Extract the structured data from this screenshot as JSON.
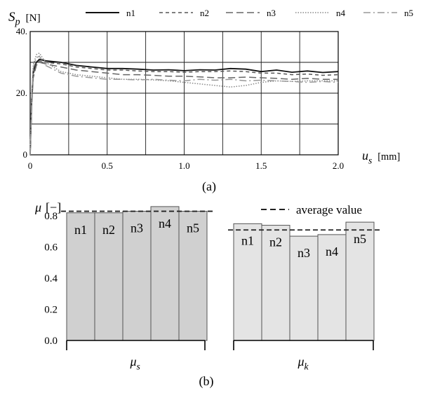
{
  "chart_data": [
    {
      "panel_label": "(a)",
      "type": "line",
      "ylabel": "S_p [N]",
      "ylabel_main": "S",
      "ylabel_sub": "p",
      "ylabel_unit": "[N]",
      "xlabel": "u_s [mm]",
      "xlabel_main": "u",
      "xlabel_sub": "s",
      "xlabel_unit": "[mm]",
      "xlim": [
        0,
        2.0
      ],
      "ylim": [
        0,
        40
      ],
      "xticks": [
        0,
        0.5,
        1.0,
        1.5,
        2.0
      ],
      "xtick_labels": [
        "0",
        "0.5",
        "1.0",
        "1.5",
        "2.0"
      ],
      "yticks": [
        0,
        20,
        40
      ],
      "ytick_labels": [
        "0",
        "20.",
        "40."
      ],
      "grid": true,
      "legend_position": "top",
      "series": [
        {
          "name": "n1",
          "color": "#111111",
          "dash": "solid",
          "x": [
            0,
            0.01,
            0.02,
            0.04,
            0.06,
            0.1,
            0.2,
            0.3,
            0.4,
            0.5,
            0.6,
            0.7,
            0.8,
            0.9,
            1.0,
            1.1,
            1.2,
            1.3,
            1.4,
            1.5,
            1.6,
            1.7,
            1.8,
            1.9,
            2.0
          ],
          "y": [
            0,
            18,
            27,
            30,
            31,
            30.5,
            30,
            29,
            28.5,
            28,
            28,
            27.8,
            27.5,
            27.6,
            27.3,
            27.6,
            27.5,
            28,
            27.8,
            27,
            27.5,
            26.8,
            27.2,
            26.7,
            27
          ]
        },
        {
          "name": "n2",
          "color": "#555555",
          "dash": "short-dash",
          "x": [
            0,
            0.01,
            0.02,
            0.04,
            0.06,
            0.1,
            0.2,
            0.3,
            0.4,
            0.5,
            0.6,
            0.7,
            0.8,
            0.9,
            1.0,
            1.1,
            1.2,
            1.3,
            1.4,
            1.5,
            1.6,
            1.7,
            1.8,
            1.9,
            2.0
          ],
          "y": [
            0,
            17,
            26,
            29.5,
            30.5,
            30,
            29.5,
            28.5,
            28,
            27.5,
            27.5,
            27.2,
            27,
            27,
            26.8,
            27,
            27,
            27.2,
            27,
            26.5,
            26.5,
            26,
            26.2,
            25.8,
            26
          ]
        },
        {
          "name": "n3",
          "color": "#666666",
          "dash": "long-dash",
          "x": [
            0,
            0.01,
            0.02,
            0.04,
            0.06,
            0.1,
            0.2,
            0.3,
            0.4,
            0.5,
            0.6,
            0.7,
            0.8,
            0.9,
            1.0,
            1.1,
            1.2,
            1.3,
            1.4,
            1.5,
            1.6,
            1.7,
            1.8,
            1.9,
            2.0
          ],
          "y": [
            0,
            16,
            25,
            29,
            30,
            29.5,
            28.5,
            27.5,
            27,
            26.5,
            26,
            26,
            25.8,
            25.5,
            25.5,
            25.3,
            25,
            25,
            25.2,
            25,
            24.8,
            24.5,
            24.8,
            24.5,
            24.5
          ]
        },
        {
          "name": "n4",
          "color": "#888888",
          "dash": "dotted",
          "x": [
            0,
            0.01,
            0.02,
            0.04,
            0.06,
            0.1,
            0.2,
            0.3,
            0.4,
            0.5,
            0.6,
            0.7,
            0.8,
            0.9,
            1.0,
            1.1,
            1.2,
            1.3,
            1.4,
            1.5,
            1.6,
            1.7,
            1.8,
            1.9,
            2.0
          ],
          "y": [
            0,
            20,
            29,
            32.5,
            33,
            30,
            27,
            26,
            25.5,
            25,
            24.5,
            24.5,
            24.3,
            24,
            23.5,
            23,
            22.5,
            22,
            22.5,
            23.5,
            24,
            23.8,
            24,
            24,
            24
          ]
        },
        {
          "name": "n5",
          "color": "#999999",
          "dash": "dash-dot",
          "x": [
            0,
            0.01,
            0.02,
            0.04,
            0.06,
            0.1,
            0.2,
            0.3,
            0.4,
            0.5,
            0.6,
            0.7,
            0.8,
            0.9,
            1.0,
            1.1,
            1.2,
            1.3,
            1.4,
            1.5,
            1.6,
            1.7,
            1.8,
            1.9,
            2.0
          ],
          "y": [
            0,
            19,
            28,
            31.5,
            32,
            29,
            26.5,
            25.5,
            25,
            24.5,
            24.5,
            24.3,
            24.5,
            24.2,
            24,
            24.5,
            24.2,
            24.5,
            24,
            24.2,
            24,
            23.8,
            23.5,
            23.8,
            23.5
          ]
        }
      ]
    },
    {
      "panel_label": "(b)",
      "type": "bar",
      "ylabel": "μ [−]",
      "ylabel_main": "μ",
      "ylabel_unit": "[−]",
      "ylim": [
        0,
        0.9
      ],
      "yticks": [
        0,
        0.2,
        0.4,
        0.6,
        0.8
      ],
      "ytick_labels": [
        "0.0",
        "0.2",
        "0.4",
        "0.6",
        "0.8"
      ],
      "legend": [
        {
          "label": "average value",
          "style": "dashed",
          "color": "#222222"
        }
      ],
      "legend_position": "top-right",
      "groups": [
        {
          "name": "μ_s",
          "name_main": "μ",
          "name_sub": "s",
          "color": "#d0d0d0",
          "categories": [
            "n1",
            "n2",
            "n3",
            "n4",
            "n5"
          ],
          "values": [
            0.82,
            0.82,
            0.83,
            0.86,
            0.83
          ],
          "average": 0.83
        },
        {
          "name": "μ_k",
          "name_main": "μ",
          "name_sub": "k",
          "color": "#e4e4e4",
          "categories": [
            "n1",
            "n2",
            "n3",
            "n4",
            "n5"
          ],
          "values": [
            0.75,
            0.74,
            0.67,
            0.68,
            0.76
          ],
          "average": 0.71
        }
      ]
    }
  ]
}
